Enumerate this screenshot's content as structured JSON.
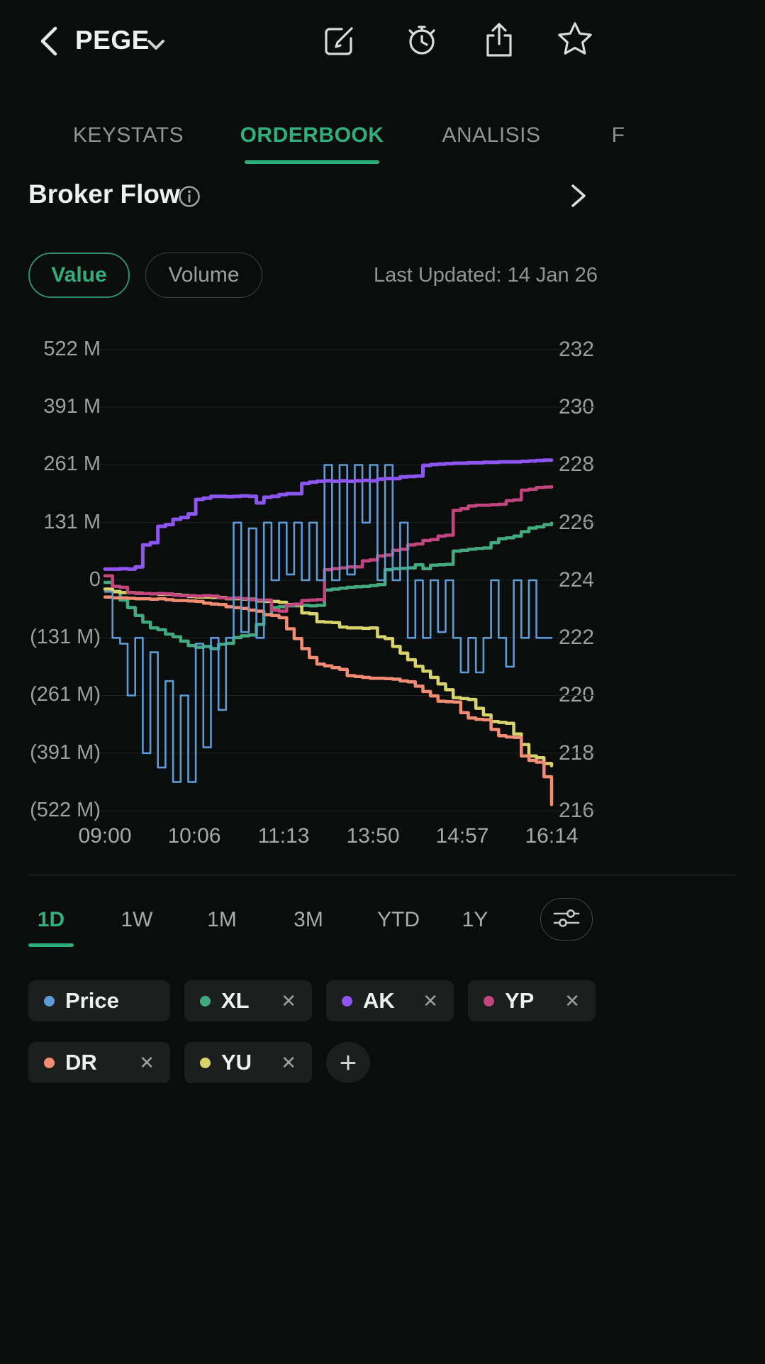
{
  "theme": {
    "accent": "#2fae7e",
    "background": "#0b0d0c",
    "chip_background": "#1c1f1d",
    "text_muted": "#9aa09c"
  },
  "header": {
    "title": "PEGE",
    "icons": [
      "back-chevron",
      "edit",
      "alarm-clock",
      "share",
      "star"
    ]
  },
  "tabs": {
    "items": [
      {
        "label": "KEYSTATS",
        "active": false
      },
      {
        "label": "ORDERBOOK",
        "active": true
      },
      {
        "label": "ANALISIS",
        "active": false
      },
      {
        "label": "F",
        "active": false
      }
    ]
  },
  "section": {
    "title": "Broker Flow"
  },
  "controls": {
    "value_label": "Value",
    "volume_label": "Volume",
    "last_updated": "Last Updated: 14 Jan 26"
  },
  "ranges": {
    "items": [
      "1D",
      "1W",
      "1M",
      "3M",
      "YTD",
      "1Y"
    ],
    "active": "1D"
  },
  "legend": {
    "remove_symbol": "✕",
    "add_label": "+",
    "chips": [
      {
        "label": "Price",
        "series": "Price",
        "removable": false
      },
      {
        "label": "XL",
        "series": "XL",
        "removable": true
      },
      {
        "label": "AK",
        "series": "AK",
        "removable": true
      },
      {
        "label": "YP",
        "series": "YP",
        "removable": true
      },
      {
        "label": "DR",
        "series": "DR",
        "removable": true
      },
      {
        "label": "YU",
        "series": "YU",
        "removable": true
      }
    ]
  },
  "chart_data": {
    "type": "line",
    "title": "Broker Flow",
    "grid": true,
    "x_ticks": [
      "09:00",
      "10:06",
      "11:13",
      "13:50",
      "14:57",
      "16:14"
    ],
    "left_axis": {
      "unit": "M",
      "labels": [
        "522 M",
        "391 M",
        "261 M",
        "131 M",
        "0",
        "(131 M)",
        "(261 M)",
        "(391 M)",
        "(522 M)"
      ],
      "max": 522,
      "min": -522
    },
    "right_axis": {
      "unit": "price",
      "labels": [
        "232",
        "230",
        "228",
        "226",
        "224",
        "222",
        "220",
        "218",
        "216"
      ],
      "max": 232,
      "min": 216
    },
    "series": [
      {
        "name": "XL",
        "axis": "left",
        "color": "#41ab7f",
        "width": 4.5,
        "values": [
          -5,
          -25,
          -45,
          -62,
          -80,
          -95,
          -108,
          -112,
          -122,
          -128,
          -138,
          -148,
          -152,
          -150,
          -155,
          -145,
          -143,
          -130,
          -126,
          -124,
          -100,
          -78,
          -62,
          -60,
          -58,
          -58,
          -57,
          -58,
          -57,
          -22,
          -20,
          -18,
          -16,
          -15,
          -14,
          -12,
          -10,
          24,
          26,
          27,
          28,
          35,
          26,
          34,
          35,
          36,
          66,
          68,
          70,
          72,
          73,
          85,
          94,
          96,
          100,
          110,
          118,
          121,
          126,
          129
        ]
      },
      {
        "name": "YU",
        "axis": "left",
        "color": "#d9d36c",
        "width": 4.5,
        "values": [
          -20,
          -26,
          -28,
          -28,
          -29,
          -30,
          -31,
          -32,
          -32,
          -33,
          -34,
          -37,
          -38,
          -38,
          -39,
          -39,
          -42,
          -42,
          -43,
          -43,
          -47,
          -48,
          -48,
          -50,
          -55,
          -56,
          -74,
          -76,
          -94,
          -95,
          -96,
          -106,
          -108,
          -108,
          -109,
          -108,
          -128,
          -132,
          -150,
          -165,
          -180,
          -195,
          -206,
          -220,
          -235,
          -248,
          -266,
          -268,
          -270,
          -290,
          -305,
          -320,
          -322,
          -324,
          -348,
          -372,
          -398,
          -402,
          -415,
          -420
        ]
      },
      {
        "name": "DR",
        "axis": "left",
        "color": "#f28d74",
        "width": 4.5,
        "values": [
          -38,
          -40,
          -40,
          -41,
          -42,
          -42,
          -43,
          -42,
          -44,
          -46,
          -46,
          -47,
          -48,
          -52,
          -54,
          -55,
          -60,
          -62,
          -64,
          -68,
          -70,
          -78,
          -80,
          -85,
          -110,
          -132,
          -155,
          -175,
          -190,
          -194,
          -198,
          -202,
          -216,
          -218,
          -220,
          -222,
          -222,
          -223,
          -224,
          -228,
          -230,
          -240,
          -252,
          -262,
          -274,
          -275,
          -276,
          -300,
          -312,
          -315,
          -316,
          -338,
          -352,
          -355,
          -356,
          -398,
          -408,
          -412,
          -445,
          -508
        ]
      },
      {
        "name": "YP",
        "axis": "left",
        "color": "#c2457f",
        "width": 4.5,
        "values": [
          10,
          -14,
          -16,
          -28,
          -30,
          -30,
          -31,
          -30,
          -31,
          -34,
          -35,
          -35,
          -36,
          -35,
          -36,
          -40,
          -41,
          -40,
          -42,
          -44,
          -45,
          -45,
          -68,
          -70,
          -56,
          -54,
          -46,
          -45,
          -44,
          24,
          26,
          28,
          30,
          30,
          44,
          46,
          55,
          57,
          68,
          70,
          80,
          82,
          90,
          92,
          100,
          102,
          158,
          162,
          168,
          170,
          170,
          171,
          172,
          180,
          182,
          204,
          206,
          210,
          211,
          212
        ]
      },
      {
        "name": "Price",
        "axis": "right",
        "color": "#5b9cd6",
        "width": 2.6,
        "values": [
          223.6,
          222,
          221.8,
          220,
          222,
          218,
          221.5,
          217.5,
          220.5,
          217,
          220,
          217,
          221.8,
          218.2,
          222,
          219.5,
          222,
          226,
          222.2,
          225.8,
          222,
          226,
          224,
          226,
          224.2,
          226,
          224,
          226,
          224,
          228,
          224,
          228,
          224.2,
          228,
          226,
          228,
          224,
          228,
          224,
          226,
          222,
          224,
          222,
          224,
          222.2,
          224,
          222,
          220.8,
          222,
          220.8,
          222,
          224,
          222,
          221,
          224,
          222,
          224,
          222,
          222,
          222
        ]
      },
      {
        "name": "AK",
        "axis": "left",
        "color": "#8d55f2",
        "width": 5,
        "values": [
          25,
          25,
          26,
          25,
          30,
          80,
          85,
          122,
          126,
          138,
          142,
          150,
          183,
          186,
          190,
          190,
          189,
          190,
          191,
          190,
          175,
          188,
          190,
          194,
          196,
          196,
          219,
          222,
          224,
          225,
          224,
          225,
          224,
          225,
          226,
          225,
          229,
          230,
          230,
          234,
          235,
          236,
          260,
          262,
          263,
          264,
          265,
          265,
          266,
          266,
          267,
          267,
          268,
          268,
          268,
          269,
          270,
          271,
          272,
          272
        ]
      }
    ]
  }
}
